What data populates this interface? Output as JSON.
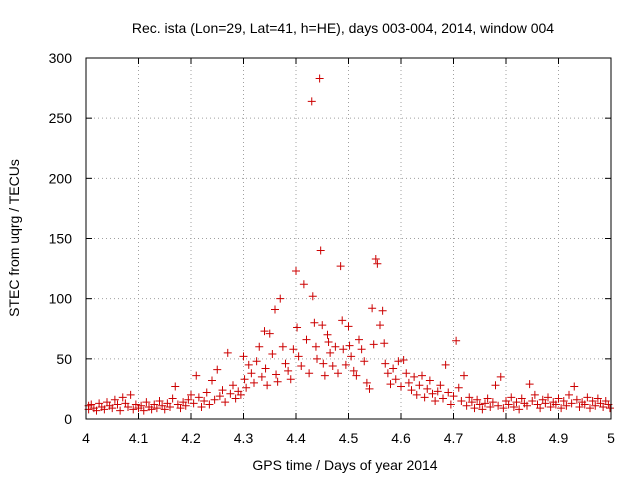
{
  "chart_data": {
    "type": "scatter",
    "title": "Rec. ista (Lon=29, Lat=41, h=HE), days 003-004, 2014, window 004",
    "xlabel": "GPS time / Days of year 2014",
    "ylabel": "STEC from uqrg / TECUs",
    "xlim": [
      4,
      5
    ],
    "ylim": [
      0,
      300
    ],
    "xticks": [
      "4",
      "4.1",
      "4.2",
      "4.3",
      "4.4",
      "4.5",
      "4.6",
      "4.7",
      "4.8",
      "4.9",
      "5"
    ],
    "yticks": [
      "0",
      "50",
      "100",
      "150",
      "200",
      "250",
      "300"
    ],
    "grid": true,
    "marker": "+",
    "colors": {
      "series": "#cc0000",
      "grid": "#a0a0a0",
      "axis": "#000000"
    },
    "series": [
      {
        "points": [
          [
            4.005,
            11
          ],
          [
            4.005,
            8
          ],
          [
            4.01,
            12
          ],
          [
            4.015,
            9
          ],
          [
            4.02,
            7
          ],
          [
            4.025,
            13
          ],
          [
            4.03,
            10
          ],
          [
            4.035,
            8
          ],
          [
            4.04,
            14
          ],
          [
            4.045,
            11
          ],
          [
            4.05,
            9
          ],
          [
            4.055,
            16
          ],
          [
            4.06,
            12
          ],
          [
            4.065,
            7
          ],
          [
            4.07,
            18
          ],
          [
            4.075,
            13
          ],
          [
            4.08,
            10
          ],
          [
            4.085,
            20
          ],
          [
            4.09,
            8
          ],
          [
            4.095,
            12
          ],
          [
            4.1,
            9
          ],
          [
            4.105,
            11
          ],
          [
            4.11,
            7
          ],
          [
            4.115,
            14
          ],
          [
            4.12,
            10
          ],
          [
            4.125,
            8
          ],
          [
            4.13,
            12
          ],
          [
            4.135,
            9
          ],
          [
            4.14,
            15
          ],
          [
            4.145,
            11
          ],
          [
            4.15,
            8
          ],
          [
            4.155,
            13
          ],
          [
            4.16,
            10
          ],
          [
            4.165,
            17
          ],
          [
            4.17,
            27
          ],
          [
            4.175,
            12
          ],
          [
            4.18,
            9
          ],
          [
            4.185,
            14
          ],
          [
            4.19,
            11
          ],
          [
            4.195,
            16
          ],
          [
            4.2,
            20
          ],
          [
            4.205,
            13
          ],
          [
            4.21,
            36
          ],
          [
            4.215,
            18
          ],
          [
            4.22,
            10
          ],
          [
            4.225,
            15
          ],
          [
            4.23,
            22
          ],
          [
            4.235,
            12
          ],
          [
            4.24,
            32
          ],
          [
            4.245,
            16
          ],
          [
            4.25,
            41
          ],
          [
            4.255,
            19
          ],
          [
            4.26,
            24
          ],
          [
            4.265,
            14
          ],
          [
            4.27,
            55
          ],
          [
            4.275,
            21
          ],
          [
            4.28,
            28
          ],
          [
            4.285,
            17
          ],
          [
            4.29,
            23
          ],
          [
            4.295,
            20
          ],
          [
            4.3,
            52
          ],
          [
            4.302,
            33
          ],
          [
            4.305,
            26
          ],
          [
            4.31,
            45
          ],
          [
            4.315,
            38
          ],
          [
            4.32,
            30
          ],
          [
            4.325,
            48
          ],
          [
            4.33,
            60
          ],
          [
            4.335,
            35
          ],
          [
            4.34,
            73
          ],
          [
            4.342,
            42
          ],
          [
            4.345,
            28
          ],
          [
            4.35,
            71
          ],
          [
            4.355,
            54
          ],
          [
            4.36,
            91
          ],
          [
            4.362,
            37
          ],
          [
            4.365,
            31
          ],
          [
            4.37,
            100
          ],
          [
            4.375,
            60
          ],
          [
            4.38,
            46
          ],
          [
            4.385,
            40
          ],
          [
            4.39,
            33
          ],
          [
            4.395,
            58
          ],
          [
            4.4,
            123
          ],
          [
            4.402,
            76
          ],
          [
            4.405,
            52
          ],
          [
            4.41,
            44
          ],
          [
            4.415,
            112
          ],
          [
            4.42,
            66
          ],
          [
            4.425,
            38
          ],
          [
            4.43,
            264
          ],
          [
            4.432,
            102
          ],
          [
            4.435,
            80
          ],
          [
            4.438,
            60
          ],
          [
            4.44,
            50
          ],
          [
            4.445,
            283
          ],
          [
            4.447,
            140
          ],
          [
            4.45,
            78
          ],
          [
            4.452,
            46
          ],
          [
            4.455,
            36
          ],
          [
            4.46,
            70
          ],
          [
            4.462,
            64
          ],
          [
            4.465,
            55
          ],
          [
            4.47,
            44
          ],
          [
            4.475,
            60
          ],
          [
            4.48,
            38
          ],
          [
            4.485,
            127
          ],
          [
            4.488,
            82
          ],
          [
            4.49,
            58
          ],
          [
            4.495,
            45
          ],
          [
            4.5,
            77
          ],
          [
            4.502,
            61
          ],
          [
            4.505,
            52
          ],
          [
            4.51,
            40
          ],
          [
            4.515,
            36
          ],
          [
            4.52,
            66
          ],
          [
            4.525,
            58
          ],
          [
            4.53,
            48
          ],
          [
            4.535,
            30
          ],
          [
            4.54,
            25
          ],
          [
            4.545,
            92
          ],
          [
            4.548,
            62
          ],
          [
            4.552,
            133
          ],
          [
            4.555,
            129
          ],
          [
            4.56,
            78
          ],
          [
            4.565,
            90
          ],
          [
            4.568,
            63
          ],
          [
            4.57,
            46
          ],
          [
            4.575,
            38
          ],
          [
            4.58,
            29
          ],
          [
            4.585,
            42
          ],
          [
            4.59,
            33
          ],
          [
            4.595,
            48
          ],
          [
            4.6,
            27
          ],
          [
            4.605,
            49
          ],
          [
            4.61,
            38
          ],
          [
            4.615,
            30
          ],
          [
            4.62,
            24
          ],
          [
            4.625,
            35
          ],
          [
            4.63,
            20
          ],
          [
            4.635,
            28
          ],
          [
            4.64,
            36
          ],
          [
            4.645,
            18
          ],
          [
            4.65,
            25
          ],
          [
            4.655,
            32
          ],
          [
            4.66,
            21
          ],
          [
            4.665,
            15
          ],
          [
            4.67,
            23
          ],
          [
            4.675,
            28
          ],
          [
            4.68,
            17
          ],
          [
            4.685,
            45
          ],
          [
            4.69,
            22
          ],
          [
            4.695,
            12
          ],
          [
            4.7,
            19
          ],
          [
            4.705,
            65
          ],
          [
            4.71,
            26
          ],
          [
            4.715,
            15
          ],
          [
            4.72,
            36
          ],
          [
            4.725,
            11
          ],
          [
            4.73,
            18
          ],
          [
            4.735,
            14
          ],
          [
            4.74,
            9
          ],
          [
            4.745,
            16
          ],
          [
            4.75,
            12
          ],
          [
            4.755,
            8
          ],
          [
            4.76,
            13
          ],
          [
            4.765,
            17
          ],
          [
            4.77,
            10
          ],
          [
            4.775,
            14
          ],
          [
            4.78,
            28
          ],
          [
            4.785,
            11
          ],
          [
            4.79,
            35
          ],
          [
            4.795,
            9
          ],
          [
            4.8,
            15
          ],
          [
            4.805,
            12
          ],
          [
            4.81,
            18
          ],
          [
            4.815,
            10
          ],
          [
            4.82,
            14
          ],
          [
            4.825,
            8
          ],
          [
            4.83,
            17
          ],
          [
            4.835,
            13
          ],
          [
            4.84,
            11
          ],
          [
            4.845,
            29
          ],
          [
            4.85,
            15
          ],
          [
            4.855,
            20
          ],
          [
            4.86,
            12
          ],
          [
            4.865,
            9
          ],
          [
            4.87,
            16
          ],
          [
            4.875,
            13
          ],
          [
            4.88,
            18
          ],
          [
            4.885,
            10
          ],
          [
            4.89,
            14
          ],
          [
            4.895,
            12
          ],
          [
            4.9,
            17
          ],
          [
            4.905,
            9
          ],
          [
            4.91,
            15
          ],
          [
            4.915,
            11
          ],
          [
            4.92,
            20
          ],
          [
            4.925,
            13
          ],
          [
            4.93,
            27
          ],
          [
            4.935,
            16
          ],
          [
            4.94,
            10
          ],
          [
            4.945,
            14
          ],
          [
            4.95,
            12
          ],
          [
            4.955,
            18
          ],
          [
            4.96,
            9
          ],
          [
            4.965,
            15
          ],
          [
            4.97,
            11
          ],
          [
            4.975,
            17
          ],
          [
            4.98,
            13
          ],
          [
            4.985,
            10
          ],
          [
            4.99,
            15
          ],
          [
            4.995,
            12
          ],
          [
            4.998,
            9
          ]
        ]
      }
    ]
  }
}
